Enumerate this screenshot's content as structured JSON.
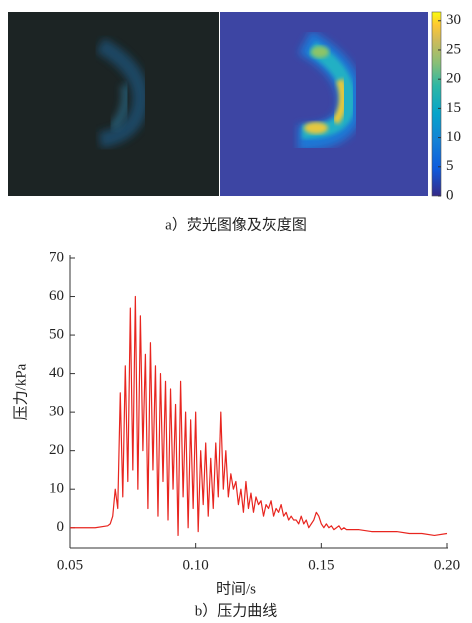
{
  "chart_data": [
    {
      "type": "image",
      "caption": "a）荧光图像及灰度图",
      "colormap": "parula",
      "ylim": [
        0,
        31.5
      ],
      "yticks": [
        0,
        5,
        10,
        15,
        20,
        25,
        30
      ]
    },
    {
      "type": "line",
      "caption": "b）压力曲线",
      "xlabel": "时间/s",
      "ylabel": "压力/kPa",
      "color": "#e8251f",
      "xlim": [
        0.05,
        0.2
      ],
      "xticks": [
        0.05,
        {
          "value": 0.1,
          "label": "0.10"
        },
        0.15,
        {
          "value": 0.2,
          "label": "0.20"
        }
      ],
      "ylim": [
        -5,
        70
      ],
      "yticks": [
        0,
        10,
        20,
        30,
        40,
        50,
        60,
        70
      ],
      "x": [
        0.05,
        0.055,
        0.06,
        0.065,
        0.066,
        0.067,
        0.068,
        0.069,
        0.07,
        0.071,
        0.072,
        0.073,
        0.074,
        0.075,
        0.076,
        0.077,
        0.078,
        0.079,
        0.08,
        0.081,
        0.082,
        0.083,
        0.084,
        0.085,
        0.086,
        0.087,
        0.088,
        0.089,
        0.09,
        0.091,
        0.092,
        0.093,
        0.094,
        0.095,
        0.096,
        0.097,
        0.098,
        0.099,
        0.1,
        0.101,
        0.102,
        0.103,
        0.104,
        0.105,
        0.106,
        0.107,
        0.108,
        0.109,
        0.11,
        0.111,
        0.112,
        0.113,
        0.114,
        0.115,
        0.116,
        0.117,
        0.118,
        0.119,
        0.12,
        0.121,
        0.122,
        0.123,
        0.124,
        0.125,
        0.126,
        0.127,
        0.128,
        0.129,
        0.13,
        0.131,
        0.132,
        0.133,
        0.134,
        0.135,
        0.136,
        0.137,
        0.138,
        0.139,
        0.14,
        0.141,
        0.142,
        0.143,
        0.144,
        0.145,
        0.146,
        0.147,
        0.148,
        0.149,
        0.15,
        0.151,
        0.152,
        0.153,
        0.154,
        0.155,
        0.156,
        0.157,
        0.158,
        0.159,
        0.16,
        0.165,
        0.17,
        0.175,
        0.18,
        0.185,
        0.19,
        0.195,
        0.2
      ],
      "values": [
        0,
        0,
        0,
        0.5,
        1,
        3,
        10,
        5,
        35,
        8,
        42,
        12,
        57,
        15,
        60,
        10,
        55,
        20,
        45,
        5,
        48,
        15,
        42,
        3,
        40,
        12,
        38,
        2,
        36,
        10,
        32,
        -2,
        38,
        8,
        30,
        0,
        28,
        5,
        30,
        -1,
        20,
        6,
        22,
        3,
        18,
        5,
        22,
        8,
        30,
        10,
        20,
        8,
        14,
        10,
        12,
        6,
        10,
        4,
        12,
        5,
        9,
        4,
        8,
        6,
        7,
        3,
        6,
        5,
        7,
        3,
        5,
        4,
        6,
        3,
        4,
        2,
        3,
        2,
        2,
        1,
        3,
        1,
        2,
        0,
        1,
        2,
        4,
        3,
        1,
        0,
        1,
        0,
        0.5,
        -0.5,
        0,
        0.5,
        -0.5,
        0,
        -0.5,
        -0.5,
        -1,
        -1,
        -1,
        -1.5,
        -1.5,
        -2,
        -1.5
      ]
    }
  ]
}
